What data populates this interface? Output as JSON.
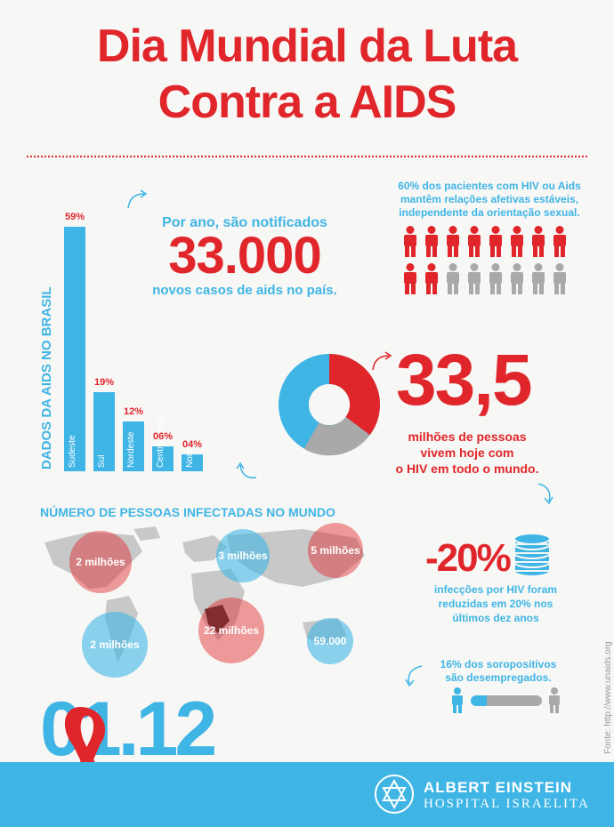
{
  "title": {
    "line1": "Dia Mundial da Luta",
    "line2": "Contra a AIDS"
  },
  "brazil": {
    "vertical_label": "DADOS DA AIDS NO BRASIL",
    "bars": [
      {
        "label": "Sudeste",
        "pct_label": "59%",
        "value": 59
      },
      {
        "label": "Sul",
        "pct_label": "19%",
        "value": 19
      },
      {
        "label": "Nordeste",
        "pct_label": "12%",
        "value": 12
      },
      {
        "label": "Centro-Oeste",
        "pct_label": "06%",
        "value": 6
      },
      {
        "label": "Norte",
        "pct_label": "04%",
        "value": 4
      }
    ]
  },
  "notified": {
    "top": "Por ano, são notificados",
    "number": "33.000",
    "bottom": "novos casos de aids no país."
  },
  "relationships": {
    "line1": "60% dos pacientes com HIV ou Aids",
    "line2": "mantêm relações afetivas estáveis,",
    "line3": "independente da orientação sexual.",
    "red_count": 10,
    "total": 16
  },
  "world_hiv": {
    "number": "33,5",
    "line1": "milhões de pessoas",
    "line2": "vivem hoje com",
    "line3": "o HIV em todo o mundo."
  },
  "map": {
    "title": "NÚMERO DE PESSOAS INFECTADAS NO MUNDO",
    "bubbles": [
      {
        "label": "2 milhões",
        "color": "red"
      },
      {
        "label": "3 milhões",
        "color": "blue"
      },
      {
        "label": "5 milhões",
        "color": "red"
      },
      {
        "label": "22 milhões",
        "color": "red"
      },
      {
        "label": "2 milhões",
        "color": "blue"
      },
      {
        "label": "59.000",
        "color": "blue"
      }
    ]
  },
  "reduction": {
    "number": "-20%",
    "line1": "infecções por HIV foram",
    "line2": "reduzidas em 20% nos",
    "line3": "últimos dez anos"
  },
  "unemployed": {
    "line1": "16% dos soropositivos",
    "line2": "são desempregados."
  },
  "date": "01.12",
  "source": "Fonte: http://www.unaids.org",
  "logo": {
    "line1": "ALBERT EINSTEIN",
    "line2": "HOSPITAL ISRAELITA"
  },
  "colors": {
    "red": "#e0262b",
    "blue": "#3fb5e6",
    "gray": "#a9a9a9"
  }
}
